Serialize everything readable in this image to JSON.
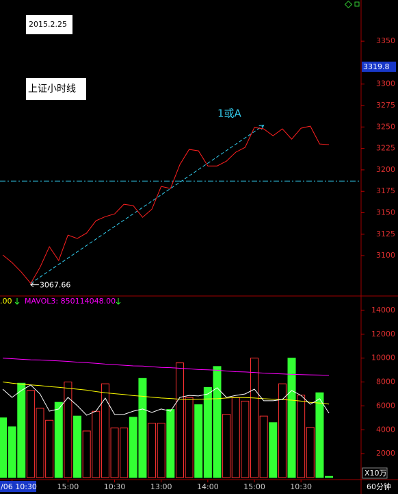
{
  "chart_data": [
    {
      "type": "line",
      "date_label": "2015.2.25",
      "title": "上证小时线",
      "annotation": "1或A",
      "series": [
        {
          "color": "#ff2020",
          "values": [
            3100.8,
            3092,
            3080.8,
            3067.66,
            3086.4,
            3110.4,
            3094.4,
            3124,
            3120,
            3126.4,
            3140.7,
            3145.5,
            3148.7,
            3159.9,
            3158.3,
            3144.7,
            3154.3,
            3180.7,
            3178.3,
            3206.2,
            3223.8,
            3222.2,
            3204.6,
            3204.6,
            3210.2,
            3220.6,
            3226.2,
            3249.4,
            3247.8,
            3239.8,
            3247.8,
            3235.8,
            3248.6,
            3251,
            3230.2,
            3229.4
          ]
        }
      ],
      "current_price": 3319.8,
      "reference_line": 3187,
      "trend_line": {
        "x": [
          3,
          28
        ],
        "values": [
          3067.66,
          3252
        ]
      },
      "ylim": [
        3053,
        3398
      ],
      "yticks": [
        3100,
        3125,
        3150,
        3175,
        3200,
        3225,
        3250,
        3275,
        3300,
        3350
      ]
    },
    {
      "type": "bar",
      "header": ".00",
      "ma_label": "MAVOL3: 850114048.00",
      "unit": "X10万",
      "period": "60分钟",
      "categories": [
        null,
        "/06 10:30",
        null,
        null,
        null,
        null,
        null,
        "15:00",
        null,
        null,
        null,
        null,
        "10:30",
        null,
        null,
        null,
        null,
        "13:00",
        null,
        null,
        null,
        null,
        "14:00",
        null,
        null,
        null,
        null,
        "15:00",
        null,
        null,
        null,
        null,
        "10:30",
        null,
        null,
        null
      ],
      "values": [
        5000,
        4250,
        7900,
        7300,
        5800,
        4800,
        6300,
        8000,
        5150,
        3900,
        5550,
        7850,
        4150,
        4150,
        5050,
        8300,
        4550,
        4550,
        5700,
        9600,
        6700,
        6100,
        7550,
        9300,
        5300,
        6700,
        6400,
        10000,
        5150,
        4600,
        7850,
        10000,
        6900,
        4200,
        7100,
        100
      ],
      "colors": [
        "#33ff33",
        "#33ff33",
        "#33ff33",
        "#ff3232",
        "#ff3232",
        "#ff3232",
        "#33ff33",
        "#ff3232",
        "#33ff33",
        "#ff3232",
        "#ff3232",
        "#ff3232",
        "#ff3232",
        "#ff3232",
        "#33ff33",
        "#33ff33",
        "#ff3232",
        "#ff3232",
        "#33ff33",
        "#ff3232",
        "#ff3232",
        "#33ff33",
        "#33ff33",
        "#33ff33",
        "#ff3232",
        "#ff3232",
        "#ff3232",
        "#ff3232",
        "#ff3232",
        "#33ff33",
        "#ff3232",
        "#33ff33",
        "#ff3232",
        "#ff3232",
        "#33ff33",
        "#33ff33"
      ],
      "series": [
        {
          "color": "#ff00ff",
          "values": [
            10000,
            9950,
            9900,
            9860,
            9840,
            9800,
            9760,
            9720,
            9660,
            9620,
            9560,
            9500,
            9450,
            9400,
            9350,
            9330,
            9280,
            9220,
            9200,
            9150,
            9100,
            9040,
            9020,
            8980,
            8920,
            8860,
            8840,
            8800,
            8740,
            8700,
            8680,
            8640,
            8620,
            8600,
            8580,
            8560
          ]
        },
        {
          "color": "#ffff00",
          "values": [
            8000,
            7900,
            7820,
            7760,
            7700,
            7620,
            7560,
            7480,
            7400,
            7320,
            7200,
            7100,
            7020,
            6950,
            6860,
            6800,
            6720,
            6660,
            6620,
            6560,
            6540,
            6560,
            6580,
            6600,
            6660,
            6700,
            6700,
            6660,
            6600,
            6560,
            6520,
            6480,
            6400,
            6300,
            6240,
            6150
          ]
        },
        {
          "color": "#ffffff",
          "values": [
            7400,
            6710,
            7290,
            7750,
            7000,
            5560,
            5740,
            6710,
            6020,
            5220,
            5560,
            6650,
            5280,
            5280,
            5560,
            5740,
            5450,
            5740,
            5560,
            6710,
            6880,
            6830,
            7000,
            7520,
            6710,
            6880,
            7000,
            7400,
            6430,
            6430,
            6540,
            7290,
            6880,
            6140,
            6600,
            5390
          ]
        }
      ],
      "ylim": [
        0,
        15200
      ],
      "yticks": [
        2000,
        4000,
        6000,
        8000,
        10000,
        12000,
        14000
      ]
    }
  ]
}
